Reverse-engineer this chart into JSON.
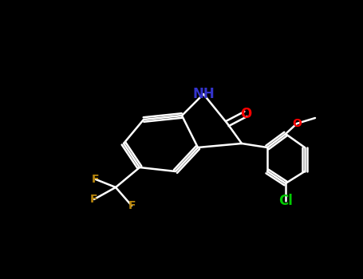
{
  "background_color": "#000000",
  "bond_color": "#ffffff",
  "atom_colors": {
    "N": "#3333cc",
    "O": "#ff0000",
    "F": "#b8860b",
    "Cl": "#00cc00",
    "C": "#ffffff"
  },
  "line_width": 1.8,
  "font_size": 11,
  "font_weight": "bold"
}
